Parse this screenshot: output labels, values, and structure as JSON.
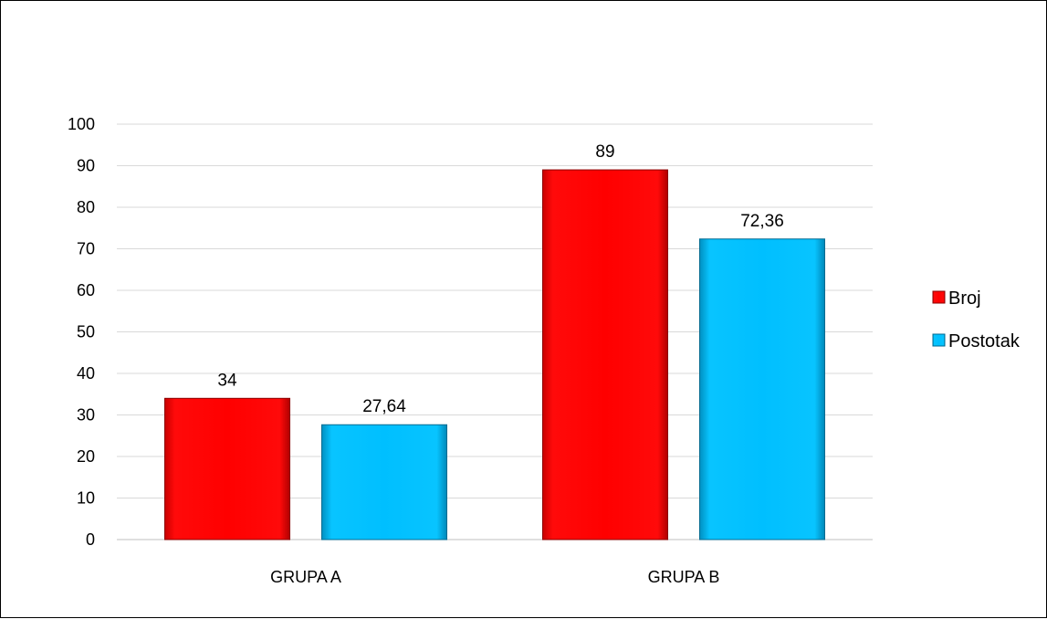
{
  "chart_data": {
    "type": "bar",
    "categories": [
      "GRUPA A",
      "GRUPA B"
    ],
    "series": [
      {
        "name": "Broj",
        "values": [
          34,
          89
        ],
        "labels": [
          "34",
          "89"
        ],
        "color": "#ff0000"
      },
      {
        "name": "Postotak",
        "values": [
          27.64,
          72.36
        ],
        "labels": [
          "27,64",
          "72,36"
        ],
        "color": "#00bfff"
      }
    ],
    "y_ticks": [
      "0",
      "10",
      "20",
      "30",
      "40",
      "50",
      "60",
      "70",
      "80",
      "90",
      "100"
    ],
    "ylim": [
      0,
      100
    ],
    "grid": true,
    "legend_position": "right"
  }
}
